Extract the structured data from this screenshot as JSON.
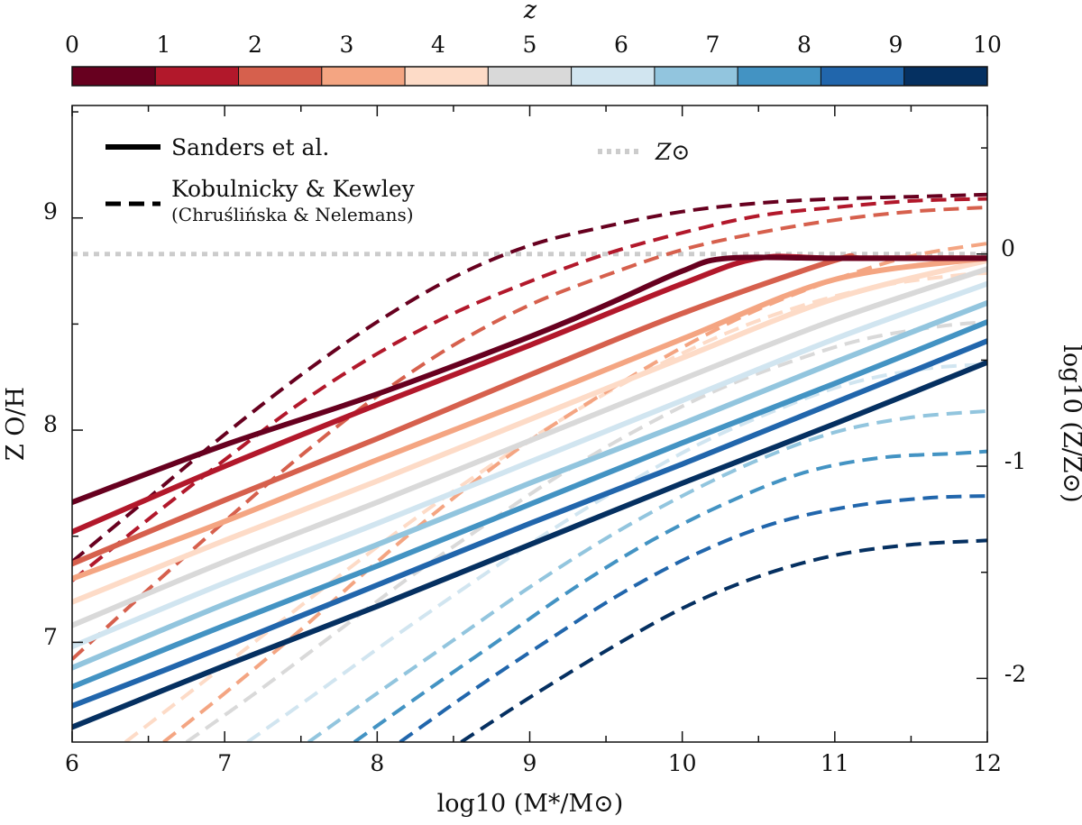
{
  "chart_data": {
    "type": "line",
    "title": "",
    "xlabel": "log10 (M*/M⊙)",
    "ylabel": "Z O/H",
    "ylabel_right": "log10 (Z/Z⊙)",
    "xlim": [
      6,
      12
    ],
    "ylim": [
      6.53,
      9.53
    ],
    "grid": false,
    "x_ticks": [
      "6",
      "7",
      "8",
      "9",
      "10",
      "11",
      "12"
    ],
    "y_ticks": [
      "7",
      "8",
      "9"
    ],
    "y_ticks_right": [
      "0",
      "-1",
      "-2"
    ],
    "solar_metallicity": 8.83,
    "colorbar": {
      "label": "z",
      "ticks": [
        "0",
        "1",
        "2",
        "3",
        "4",
        "5",
        "6",
        "7",
        "8",
        "9",
        "10"
      ],
      "colors": [
        "#67001f",
        "#b2182b",
        "#d6604d",
        "#f4a582",
        "#fddbc7",
        "#d9d9d9",
        "#d1e5f0",
        "#92c5de",
        "#4393c3",
        "#2166ac",
        "#053061"
      ]
    },
    "legend": {
      "position": "top-left",
      "sanders": "Sanders et al.",
      "kk": "Kobulnicky & Kewley",
      "kk_sub": "(Chruślińska & Nelemans)",
      "solar": "Z⊙"
    },
    "series_sanders": [
      {
        "name": "Sanders z=0",
        "x": [
          6,
          7,
          8,
          9,
          9.5,
          10,
          10.3,
          11,
          12
        ],
        "y": [
          7.66,
          7.93,
          8.17,
          8.44,
          8.59,
          8.75,
          8.81,
          8.81,
          8.81
        ]
      },
      {
        "name": "Sanders z=1",
        "x": [
          6,
          7,
          8,
          9,
          10,
          10.5,
          11,
          12
        ],
        "y": [
          7.52,
          7.83,
          8.12,
          8.4,
          8.69,
          8.81,
          8.81,
          8.81
        ]
      },
      {
        "name": "Sanders z=2",
        "x": [
          6,
          7,
          8,
          9,
          10,
          11,
          11.2,
          12
        ],
        "y": [
          7.37,
          7.67,
          7.96,
          8.26,
          8.55,
          8.8,
          8.81,
          8.81
        ]
      },
      {
        "name": "Sanders z=3",
        "x": [
          6,
          7,
          8,
          9,
          10,
          11,
          12
        ],
        "y": [
          7.3,
          7.57,
          7.86,
          8.14,
          8.43,
          8.71,
          8.81
        ]
      },
      {
        "name": "Sanders z=4",
        "x": [
          6,
          7,
          8,
          9,
          10,
          11,
          12
        ],
        "y": [
          7.19,
          7.48,
          7.76,
          8.05,
          8.34,
          8.62,
          8.8
        ]
      },
      {
        "name": "Sanders z=5",
        "x": [
          6,
          7,
          8,
          9,
          10,
          11,
          12
        ],
        "y": [
          7.08,
          7.38,
          7.66,
          7.95,
          8.24,
          8.52,
          8.76
        ]
      },
      {
        "name": "Sanders z=6",
        "x": [
          6,
          7,
          8,
          9,
          10,
          11,
          12
        ],
        "y": [
          6.98,
          7.28,
          7.56,
          7.85,
          8.14,
          8.43,
          8.69
        ]
      },
      {
        "name": "Sanders z=7",
        "x": [
          6,
          7,
          8,
          9,
          10,
          11,
          12
        ],
        "y": [
          6.88,
          7.18,
          7.46,
          7.75,
          8.03,
          8.32,
          8.6
        ]
      },
      {
        "name": "Sanders z=8",
        "x": [
          6,
          7,
          8,
          9,
          10,
          11,
          12
        ],
        "y": [
          6.79,
          7.08,
          7.36,
          7.65,
          7.94,
          8.22,
          8.51
        ]
      },
      {
        "name": "Sanders z=9",
        "x": [
          6,
          7,
          8,
          9,
          10,
          11,
          12
        ],
        "y": [
          6.7,
          6.98,
          7.27,
          7.56,
          7.84,
          8.13,
          8.42
        ]
      },
      {
        "name": "Sanders z=10",
        "x": [
          6,
          7,
          8,
          9,
          10,
          11,
          12
        ],
        "y": [
          6.6,
          6.89,
          7.17,
          7.46,
          7.75,
          8.03,
          8.32
        ]
      }
    ],
    "series_kk": [
      {
        "name": "K&K z=0",
        "x": [
          6,
          6.5,
          7,
          7.5,
          8,
          8.5,
          9,
          9.5,
          10,
          10.5,
          11,
          11.5,
          12
        ],
        "y": [
          7.38,
          7.68,
          7.98,
          8.26,
          8.51,
          8.72,
          8.87,
          8.96,
          9.03,
          9.07,
          9.09,
          9.1,
          9.11
        ]
      },
      {
        "name": "K&K z=1",
        "x": [
          6,
          6.5,
          7,
          7.5,
          8,
          8.5,
          9,
          9.5,
          10,
          10.5,
          11,
          11.5,
          12
        ],
        "y": [
          7.29,
          7.58,
          7.86,
          8.13,
          8.36,
          8.55,
          8.7,
          8.83,
          8.93,
          9.01,
          9.05,
          9.08,
          9.09
        ]
      },
      {
        "name": "K&K z=2",
        "x": [
          6,
          6.5,
          7,
          7.5,
          8,
          8.5,
          9,
          9.5,
          10,
          10.5,
          11,
          11.5,
          12
        ],
        "y": [
          6.92,
          7.25,
          7.57,
          7.88,
          8.16,
          8.4,
          8.59,
          8.73,
          8.85,
          8.93,
          8.99,
          9.03,
          9.05
        ]
      },
      {
        "name": "K&K z=3",
        "x": [
          6.6,
          7,
          7.5,
          8,
          8.5,
          9,
          9.5,
          10,
          10.5,
          11,
          11.5,
          12
        ],
        "y": [
          6.53,
          6.76,
          7.06,
          7.38,
          7.68,
          7.95,
          8.18,
          8.39,
          8.57,
          8.71,
          8.82,
          8.88
        ]
      },
      {
        "name": "K&K z=4",
        "x": [
          6.35,
          6.8,
          7.3,
          7.8,
          8.3,
          8.8,
          9.3,
          9.8,
          10.3,
          10.8,
          11.3,
          11.8,
          12
        ],
        "y": [
          6.53,
          6.78,
          7.06,
          7.34,
          7.61,
          7.86,
          8.09,
          8.29,
          8.46,
          8.59,
          8.68,
          8.73,
          8.74
        ]
      },
      {
        "name": "K&K z=5",
        "x": [
          6.75,
          7.2,
          7.7,
          8.2,
          8.7,
          9.2,
          9.7,
          10.2,
          10.7,
          11.2,
          11.7,
          12
        ],
        "y": [
          6.53,
          6.76,
          7.03,
          7.3,
          7.55,
          7.79,
          8.0,
          8.18,
          8.32,
          8.43,
          8.49,
          8.51
        ]
      },
      {
        "name": "K&K z=6",
        "x": [
          7.15,
          7.6,
          8.1,
          8.6,
          9.1,
          9.6,
          10.1,
          10.6,
          11.1,
          11.6,
          12
        ],
        "y": [
          6.53,
          6.76,
          7.02,
          7.27,
          7.51,
          7.73,
          7.93,
          8.09,
          8.22,
          8.29,
          8.31
        ]
      },
      {
        "name": "K&K z=7",
        "x": [
          7.55,
          8,
          8.5,
          9,
          9.5,
          10,
          10.5,
          11,
          11.5,
          12
        ],
        "y": [
          6.53,
          6.76,
          7.01,
          7.26,
          7.49,
          7.69,
          7.86,
          7.99,
          8.06,
          8.09
        ]
      },
      {
        "name": "K&K z=8",
        "x": [
          7.85,
          8.3,
          8.8,
          9.3,
          9.8,
          10.3,
          10.8,
          11.3,
          11.8,
          12
        ],
        "y": [
          6.53,
          6.76,
          7.01,
          7.26,
          7.48,
          7.66,
          7.8,
          7.87,
          7.89,
          7.9
        ]
      },
      {
        "name": "K&K z=9",
        "x": [
          8.15,
          8.6,
          9.1,
          9.6,
          10.1,
          10.6,
          11.1,
          11.6,
          12
        ],
        "y": [
          6.53,
          6.76,
          7.0,
          7.23,
          7.42,
          7.56,
          7.64,
          7.68,
          7.69
        ]
      },
      {
        "name": "K&K z=10",
        "x": [
          8.55,
          9,
          9.5,
          10,
          10.5,
          11,
          11.5,
          12
        ],
        "y": [
          6.53,
          6.74,
          6.96,
          7.16,
          7.31,
          7.41,
          7.46,
          7.48
        ]
      }
    ]
  }
}
